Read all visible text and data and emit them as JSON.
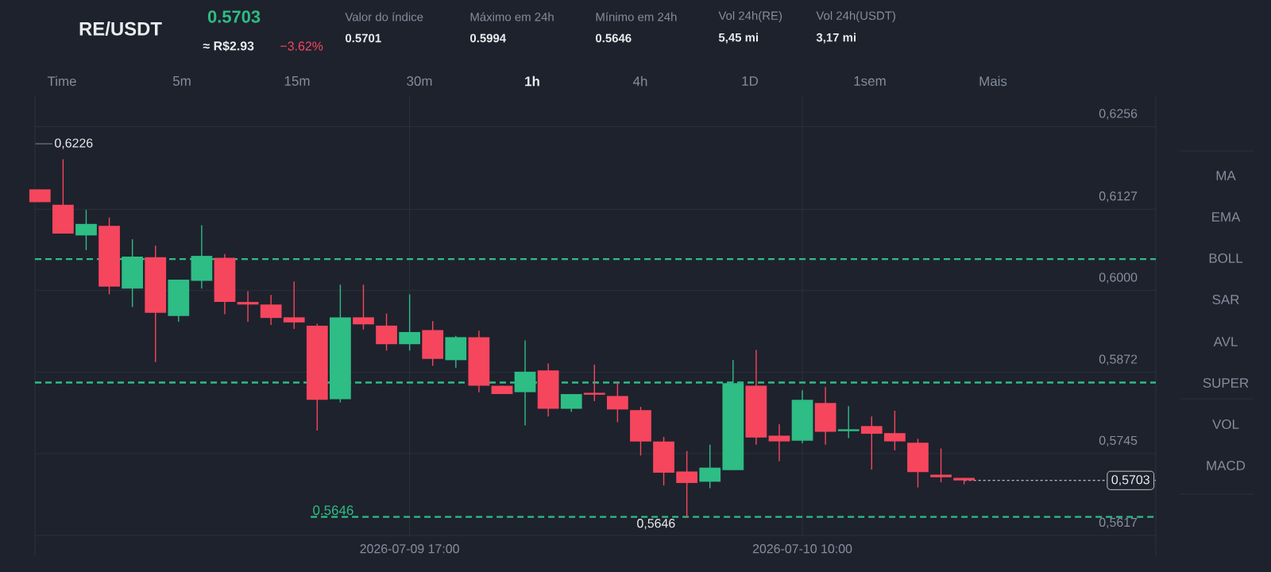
{
  "chart_data": {
    "type": "candlestick",
    "title": "RE/USDT",
    "subtitle": "0.5703",
    "x": [
      "2026-07-09T01:00",
      "2026-07-09T02:00",
      "2026-07-09T03:00",
      "2026-07-09T04:00",
      "2026-07-09T05:00",
      "2026-07-09T06:00",
      "2026-07-09T07:00",
      "2026-07-09T08:00",
      "2026-07-09T09:00",
      "2026-07-09T10:00",
      "2026-07-09T11:00",
      "2026-07-09T12:00",
      "2026-07-09T13:00",
      "2026-07-09T14:00",
      "2026-07-09T15:00",
      "2026-07-09T16:00",
      "2026-07-09T17:00",
      "2026-07-09T18:00",
      "2026-07-09T19:00",
      "2026-07-09T20:00",
      "2026-07-09T21:00",
      "2026-07-09T22:00",
      "2026-07-09T23:00",
      "2026-07-10T00:00",
      "2026-07-10T01:00",
      "2026-07-10T02:00",
      "2026-07-10T03:00",
      "2026-07-10T04:00",
      "2026-07-10T05:00",
      "2026-07-10T06:00",
      "2026-07-10T07:00",
      "2026-07-10T08:00",
      "2026-07-10T09:00",
      "2026-07-10T10:00",
      "2026-07-10T11:00",
      "2026-07-10T12:00",
      "2026-07-10T13:00",
      "2026-07-10T14:00",
      "2026-07-10T15:00",
      "2026-07-10T16:00",
      "2026-07-10T17:00"
    ],
    "ohlc": [
      [
        0.6158,
        0.6158,
        0.6138,
        0.6138
      ],
      [
        0.6134,
        0.6205,
        0.6089,
        0.6089
      ],
      [
        0.6086,
        0.6126,
        0.6063,
        0.6104
      ],
      [
        0.6101,
        0.6114,
        0.5994,
        0.6006
      ],
      [
        0.6003,
        0.608,
        0.5974,
        0.6053
      ],
      [
        0.6052,
        0.607,
        0.5888,
        0.5965
      ],
      [
        0.596,
        0.6017,
        0.5951,
        0.6017
      ],
      [
        0.6015,
        0.6102,
        0.6003,
        0.6054
      ],
      [
        0.6051,
        0.6057,
        0.5963,
        0.5982
      ],
      [
        0.5982,
        0.5999,
        0.5951,
        0.5978
      ],
      [
        0.5978,
        0.5993,
        0.5946,
        0.5957
      ],
      [
        0.5958,
        0.6014,
        0.594,
        0.595
      ],
      [
        0.5945,
        0.5948,
        0.5781,
        0.5829
      ],
      [
        0.583,
        0.6009,
        0.5825,
        0.5958
      ],
      [
        0.5958,
        0.6009,
        0.5939,
        0.5947
      ],
      [
        0.5945,
        0.5964,
        0.5906,
        0.5916
      ],
      [
        0.5916,
        0.5994,
        0.5906,
        0.5935
      ],
      [
        0.5938,
        0.5952,
        0.5882,
        0.5893
      ],
      [
        0.5891,
        0.5929,
        0.5879,
        0.5927
      ],
      [
        0.5927,
        0.5937,
        0.5841,
        0.5851
      ],
      [
        0.5851,
        0.5851,
        0.5838,
        0.5838
      ],
      [
        0.5841,
        0.5922,
        0.5789,
        0.5873
      ],
      [
        0.5875,
        0.5886,
        0.5803,
        0.5815
      ],
      [
        0.5815,
        0.5838,
        0.581,
        0.5838
      ],
      [
        0.584,
        0.5884,
        0.5827,
        0.5837
      ],
      [
        0.5835,
        0.5856,
        0.5794,
        0.5814
      ],
      [
        0.5813,
        0.5818,
        0.5742,
        0.5764
      ],
      [
        0.5764,
        0.5771,
        0.5695,
        0.5715
      ],
      [
        0.5717,
        0.5749,
        0.5646,
        0.5699
      ],
      [
        0.5701,
        0.5759,
        0.5691,
        0.5723
      ],
      [
        0.5719,
        0.5891,
        0.5719,
        0.5855
      ],
      [
        0.5851,
        0.5907,
        0.5759,
        0.577
      ],
      [
        0.5773,
        0.5791,
        0.5733,
        0.5764
      ],
      [
        0.5765,
        0.5844,
        0.5761,
        0.5829
      ],
      [
        0.5824,
        0.5849,
        0.5759,
        0.5779
      ],
      [
        0.578,
        0.5819,
        0.5769,
        0.5783
      ],
      [
        0.5788,
        0.5803,
        0.572,
        0.5776
      ],
      [
        0.5777,
        0.5812,
        0.575,
        0.5764
      ],
      [
        0.5762,
        0.5768,
        0.5692,
        0.5716
      ],
      [
        0.5712,
        0.5753,
        0.57,
        0.5708
      ],
      [
        0.5707,
        0.5707,
        0.5697,
        0.5703
      ]
    ],
    "xlim": [
      "2026-07-09T00:47",
      "2026-07-11T01:18"
    ],
    "xticks": [
      {
        "value": "2026-07-09T17:00",
        "label": "2026-07-09 17:00"
      },
      {
        "value": "2026-07-10T10:00",
        "label": "2026-07-10 10:00"
      }
    ],
    "ylim": [
      0.5617,
      0.6305
    ],
    "yticks": [
      {
        "value": 0.5617,
        "label": "0,5617"
      },
      {
        "value": 0.5745,
        "label": "0,5745"
      },
      {
        "value": 0.5872,
        "label": "0,5872"
      },
      {
        "value": 0.6,
        "label": "0,6000"
      },
      {
        "value": 0.6127,
        "label": "0,6127"
      },
      {
        "value": 0.6256,
        "label": "0,6256"
      }
    ],
    "grid": true,
    "ref_lines": [
      {
        "axis": "y",
        "value": 0.6049,
        "color": "#2ebd85",
        "line_style": "dashed"
      },
      {
        "axis": "y",
        "value": 0.5856,
        "color": "#2ebd85",
        "line_style": "dashed"
      },
      {
        "axis": "y",
        "value": 0.5646,
        "label": "0.5646",
        "color": "#2ebd85",
        "line_style": "dashed"
      },
      {
        "axis": "y",
        "value": 0.5703,
        "label": "0,5703",
        "color": "#eaecef",
        "line_style": "dotted"
      }
    ],
    "annotations": [
      "≈ R$2.93",
      "−3.62%",
      "Valor do índice",
      "0.5701",
      "Máximo em 24h",
      "0.5994",
      "Mínimo em 24h",
      "0.5646",
      "Vol 24h(RE)",
      "5,45 mi",
      "Vol 24h(USDT)",
      "3,17 mi",
      "Time",
      "5m",
      "15m",
      "30m",
      "1h",
      "4h",
      "1D",
      "1sem",
      "Mais",
      "MA",
      "EMA",
      "BOLL",
      "SAR",
      "AVL",
      "SUPER",
      "VOL",
      "MACD",
      "0,6226",
      {
        "text": "0,5646",
        "x": "2026-07-10T05:00",
        "y": 0.5646
      }
    ]
  }
}
